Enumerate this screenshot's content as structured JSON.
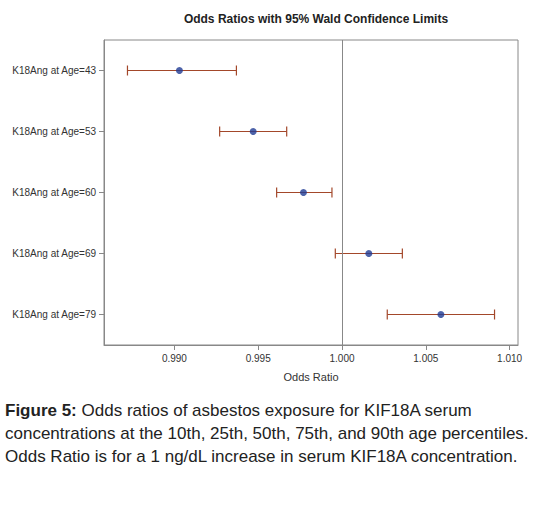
{
  "chart_data": {
    "type": "forest",
    "title": "Odds Ratios with 95% Wald Confidence Limits",
    "x_label": "Odds Ratio",
    "categories": [
      "K18Ang at Age=43",
      "K18Ang at Age=53",
      "K18Ang at Age=60",
      "K18Ang at Age=69",
      "K18Ang at Age=79"
    ],
    "values": [
      0.9903,
      0.9947,
      0.9977,
      1.0016,
      1.0059
    ],
    "ci_low": [
      0.9872,
      0.9927,
      0.9961,
      0.9996,
      1.0027
    ],
    "ci_high": [
      0.9937,
      0.9967,
      0.9994,
      1.0036,
      1.0091
    ],
    "reference_line": 1,
    "color": "#1f3b93",
    "error_bar_color": "#a3472a",
    "xlim": [
      0.9858,
      1.0105
    ],
    "xticks": [
      {
        "value": 0.99,
        "label": "0.990"
      },
      {
        "value": 0.995,
        "label": "0.995"
      },
      {
        "value": 1,
        "label": "1.000"
      },
      {
        "value": 1.005,
        "label": "1.005"
      },
      {
        "value": 1.01,
        "label": "1.010"
      }
    ],
    "grid": false,
    "marker": "circle",
    "caption_label": "Figure 5:",
    "caption": "Odds ratios of asbestos exposure for KIF18A serum concentrations at the 10th, 25th, 50th, 75th, and 90th age percentiles. Odds Ratio is for a 1 ng/dL increase in serum KIF18A concentration."
  }
}
